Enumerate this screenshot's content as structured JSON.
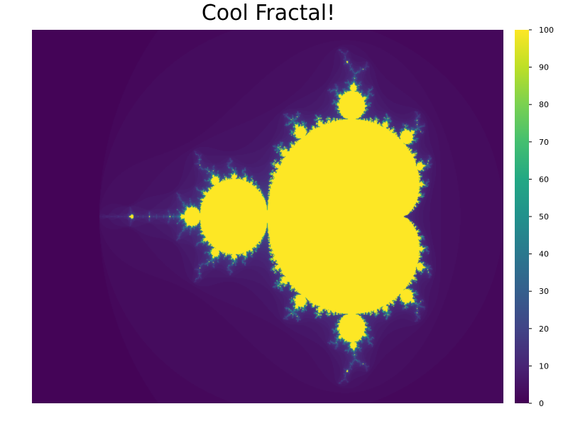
{
  "chart_data": {
    "type": "heatmap",
    "title": "Cool Fractal!",
    "xlabel": "",
    "ylabel": "",
    "grid": false,
    "colormap": "viridis",
    "colorbar": {
      "range": [
        0,
        100
      ],
      "ticks": [
        0,
        10,
        20,
        30,
        40,
        50,
        60,
        70,
        80,
        90,
        100
      ],
      "tick_labels": [
        "0",
        "10",
        "20",
        "30",
        "40",
        "50",
        "60",
        "70",
        "80",
        "90",
        "100"
      ]
    },
    "fractal": "mandelbrot",
    "max_iterations": 100,
    "real_range": [
      -2.5,
      1.0
    ],
    "imag_range": [
      -1.25,
      1.25
    ]
  },
  "colors": {
    "background": "#ffffff",
    "low": "#440154",
    "high": "#fde725"
  }
}
